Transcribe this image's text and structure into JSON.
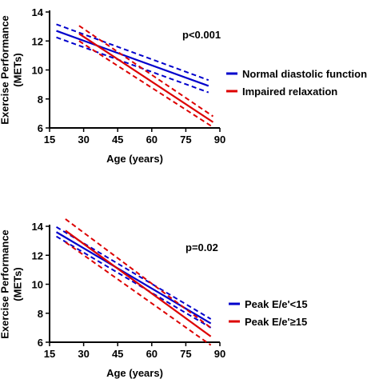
{
  "chart_data": [
    {
      "type": "line",
      "xlabel": "Age (years)",
      "ylabel_lines": [
        "Exercise Performance",
        "(METs)"
      ],
      "xlim": [
        15,
        90
      ],
      "ylim": [
        6,
        14
      ],
      "xticks": [
        15,
        30,
        45,
        60,
        75,
        90
      ],
      "yticks": [
        6,
        8,
        10,
        12,
        14
      ],
      "annotation": "p<0.001",
      "series": [
        {
          "name": "Normal diastolic function",
          "color": "#0000cc",
          "x": [
            18,
            85
          ],
          "y": [
            12.7,
            8.9
          ],
          "ci_lower": [
            12.25,
            8.45
          ],
          "ci_upper": [
            13.15,
            9.3
          ]
        },
        {
          "name": "Impaired relaxation",
          "color": "#dd0000",
          "x": [
            28,
            87
          ],
          "y": [
            12.5,
            6.4
          ],
          "ci_lower": [
            12.0,
            6.05
          ],
          "ci_upper": [
            13.05,
            6.8
          ]
        }
      ]
    },
    {
      "type": "line",
      "xlabel": "Age (years)",
      "ylabel_lines": [
        "Exercise Performance",
        "(METs)"
      ],
      "xlim": [
        15,
        90
      ],
      "ylim": [
        6,
        14
      ],
      "xticks": [
        15,
        30,
        45,
        60,
        75,
        90
      ],
      "yticks": [
        6,
        8,
        10,
        12,
        14
      ],
      "annotation": "p=0.02",
      "series": [
        {
          "name": "Peak E/e'<15",
          "color": "#0000cc",
          "x": [
            18,
            86
          ],
          "y": [
            13.6,
            7.3
          ],
          "ci_lower": [
            13.3,
            7.0
          ],
          "ci_upper": [
            13.95,
            7.6
          ]
        },
        {
          "name": "Peak E/e'≥15",
          "color": "#dd0000",
          "x": [
            22,
            86
          ],
          "y": [
            13.7,
            6.4
          ],
          "ci_lower": [
            12.9,
            5.8
          ],
          "ci_upper": [
            14.5,
            7.0
          ]
        }
      ]
    }
  ]
}
